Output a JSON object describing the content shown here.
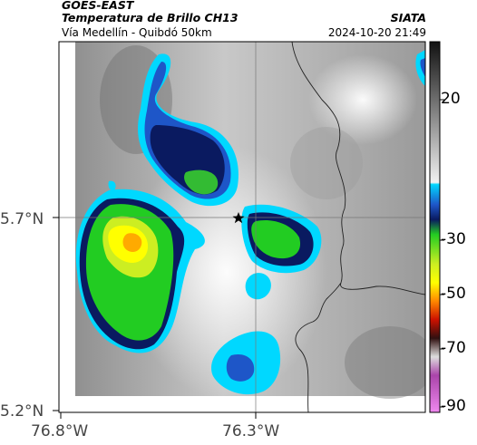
{
  "header": {
    "satellite": "GOES-EAST",
    "product": "Temperatura de Brillo CH13",
    "region": "Vía Medellín - Quibdó 50km",
    "agency": "SIATA",
    "datetime": "2024-10-20 21:49"
  },
  "axes": {
    "lat_labels": [
      "5.7°N",
      "5.2°N"
    ],
    "lon_labels": [
      "76.8°W",
      "76.3°W"
    ]
  },
  "colorbar": {
    "labels": [
      "20",
      "-30",
      "-50",
      "-70",
      "-90"
    ],
    "colors": {
      "gray_warm": "#e8e8e8",
      "gray_cold": "#202020",
      "cyan": "#00e5ff",
      "blue": "#1e56c8",
      "navy": "#0a1a60",
      "green": "#22cc22",
      "yellow": "#ffff00",
      "orange": "#ff8800",
      "red": "#cc1100",
      "dark": "#301010",
      "magenta": "#cc44cc"
    }
  },
  "marker": {
    "icon": "star-icon"
  }
}
